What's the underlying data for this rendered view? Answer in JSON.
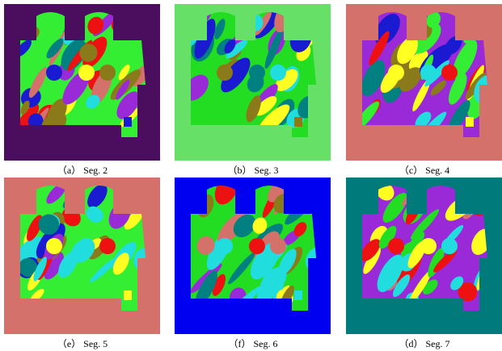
{
  "panels": [
    {
      "caption": "（a） Seg. 2"
    },
    {
      "caption": "（b） Seg. 3"
    },
    {
      "caption": "（c） Seg. 4"
    },
    {
      "caption": "（e） Seg. 5"
    },
    {
      "caption": "（f） Seg. 6"
    },
    {
      "caption": "（d） Seg. 7"
    }
  ]
}
